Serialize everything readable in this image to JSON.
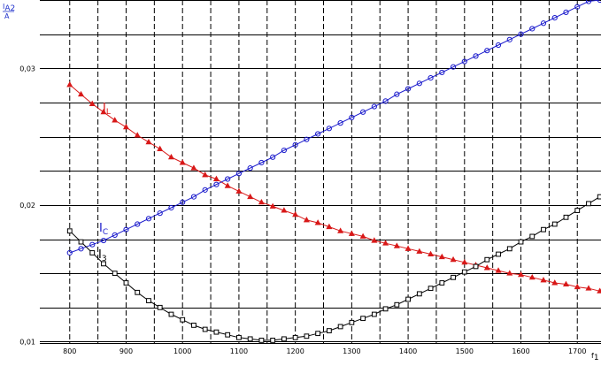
{
  "chart_data": {
    "type": "line",
    "ylabel": {
      "num_main": "I",
      "num_sub": "A2",
      "den": "A"
    },
    "xlabel": {
      "main": "f",
      "sub": "1"
    },
    "xlim": [
      747,
      1742
    ],
    "ylim": [
      0.0099,
      0.035
    ],
    "xticks": [
      800,
      900,
      1000,
      1100,
      1200,
      1300,
      1400,
      1500,
      1600,
      1700
    ],
    "yticks": [
      0.01,
      0.02,
      0.03
    ],
    "ytick_labels": [
      "0,01",
      "0,02",
      "0,03"
    ],
    "grid": true,
    "series": [
      {
        "name": "I",
        "name_sub": "L",
        "color": "#d81818",
        "marker": "triangle",
        "x": [
          800,
          820,
          840,
          860,
          880,
          900,
          920,
          940,
          960,
          980,
          1000,
          1020,
          1040,
          1060,
          1080,
          1100,
          1120,
          1140,
          1160,
          1180,
          1200,
          1220,
          1240,
          1260,
          1280,
          1300,
          1320,
          1340,
          1360,
          1380,
          1400,
          1420,
          1440,
          1460,
          1480,
          1500,
          1520,
          1540,
          1560,
          1580,
          1600,
          1620,
          1640,
          1660,
          1680,
          1700,
          1720,
          1740
        ],
        "values": [
          0.0288,
          0.0281,
          0.0274,
          0.0268,
          0.0262,
          0.0257,
          0.0251,
          0.0246,
          0.0241,
          0.0235,
          0.0231,
          0.0227,
          0.0222,
          0.0219,
          0.0214,
          0.021,
          0.0206,
          0.0202,
          0.0199,
          0.0196,
          0.0193,
          0.0189,
          0.0187,
          0.0184,
          0.0181,
          0.0179,
          0.0177,
          0.0174,
          0.0172,
          0.017,
          0.0168,
          0.0166,
          0.0164,
          0.0162,
          0.016,
          0.0158,
          0.0156,
          0.0154,
          0.0152,
          0.015,
          0.0149,
          0.0147,
          0.0145,
          0.0143,
          0.0142,
          0.014,
          0.0139,
          0.0137
        ]
      },
      {
        "name": "I",
        "name_sub": "C",
        "color": "#1a1acc",
        "marker": "circle",
        "x": [
          800,
          820,
          840,
          860,
          880,
          900,
          920,
          940,
          960,
          980,
          1000,
          1020,
          1040,
          1060,
          1080,
          1100,
          1120,
          1140,
          1160,
          1180,
          1200,
          1220,
          1240,
          1260,
          1280,
          1300,
          1320,
          1340,
          1360,
          1380,
          1400,
          1420,
          1440,
          1460,
          1480,
          1500,
          1520,
          1540,
          1560,
          1580,
          1600,
          1620,
          1640,
          1660,
          1680,
          1700,
          1720,
          1740
        ],
        "values": [
          0.0165,
          0.0168,
          0.0171,
          0.0174,
          0.0178,
          0.0182,
          0.0186,
          0.019,
          0.0194,
          0.0198,
          0.0202,
          0.0206,
          0.0211,
          0.0215,
          0.0219,
          0.0223,
          0.0227,
          0.0231,
          0.0235,
          0.024,
          0.0244,
          0.0248,
          0.0252,
          0.0256,
          0.026,
          0.0264,
          0.0268,
          0.0272,
          0.0276,
          0.0281,
          0.0285,
          0.0289,
          0.0293,
          0.0297,
          0.0301,
          0.0305,
          0.0309,
          0.0313,
          0.0317,
          0.0321,
          0.0325,
          0.0329,
          0.0333,
          0.0337,
          0.0341,
          0.0345,
          0.0349,
          0.035
        ]
      },
      {
        "name": "I",
        "name_sub": "3",
        "color": "#000000",
        "marker": "square",
        "x": [
          800,
          820,
          840,
          860,
          880,
          900,
          920,
          940,
          960,
          980,
          1000,
          1020,
          1040,
          1060,
          1080,
          1100,
          1120,
          1140,
          1160,
          1180,
          1200,
          1220,
          1240,
          1260,
          1280,
          1300,
          1320,
          1340,
          1360,
          1380,
          1400,
          1420,
          1440,
          1460,
          1480,
          1500,
          1520,
          1540,
          1560,
          1580,
          1600,
          1620,
          1640,
          1660,
          1680,
          1700,
          1720,
          1740
        ],
        "values": [
          0.0181,
          0.0173,
          0.0165,
          0.0157,
          0.015,
          0.0143,
          0.0136,
          0.013,
          0.0125,
          0.012,
          0.0116,
          0.0112,
          0.0109,
          0.0107,
          0.0105,
          0.0103,
          0.0102,
          0.0101,
          0.0101,
          0.0102,
          0.0103,
          0.0104,
          0.0106,
          0.0108,
          0.0111,
          0.0114,
          0.0117,
          0.012,
          0.0124,
          0.0127,
          0.0131,
          0.0135,
          0.0139,
          0.0143,
          0.0147,
          0.0151,
          0.0155,
          0.016,
          0.0164,
          0.0168,
          0.0173,
          0.0177,
          0.0182,
          0.0186,
          0.0191,
          0.0196,
          0.0201,
          0.0206
        ]
      }
    ]
  }
}
